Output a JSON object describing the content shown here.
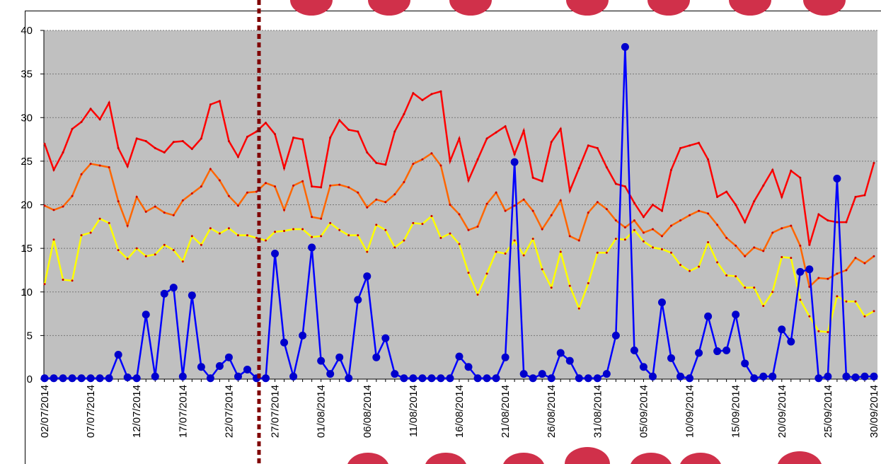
{
  "chart_data": {
    "type": "line",
    "categories": [
      "02/07/2014",
      null,
      null,
      null,
      null,
      "07/07/2014",
      null,
      null,
      null,
      null,
      "12/07/2014",
      null,
      null,
      null,
      null,
      "17/07/2014",
      null,
      null,
      null,
      null,
      "22/07/2014",
      null,
      null,
      null,
      null,
      "27/07/2014",
      null,
      null,
      null,
      null,
      "01/08/2014",
      null,
      null,
      null,
      null,
      "06/08/2014",
      null,
      null,
      null,
      null,
      "11/08/2014",
      null,
      null,
      null,
      null,
      "16/08/2014",
      null,
      null,
      null,
      null,
      "21/08/2014",
      null,
      null,
      null,
      null,
      "26/08/2014",
      null,
      null,
      null,
      null,
      "31/08/2014",
      null,
      null,
      null,
      null,
      "05/09/2014",
      null,
      null,
      null,
      null,
      "10/09/2014",
      null,
      null,
      null,
      null,
      "15/09/2014",
      null,
      null,
      null,
      null,
      "20/09/2014",
      null,
      null,
      null,
      null,
      "25/09/2014",
      null,
      null,
      null,
      null,
      "30/09/2014"
    ],
    "series": [
      {
        "color": "#ff0000",
        "values": [
          27,
          24,
          26,
          28.7,
          29.5,
          31,
          29.8,
          31.7,
          26.5,
          24.4,
          27.6,
          27.3,
          26.5,
          26,
          27.2,
          27.3,
          26.4,
          27.6,
          31.5,
          31.9,
          27.3,
          25.5,
          27.8,
          28.4,
          29.4,
          28.1,
          24.2,
          27.7,
          27.5,
          22.1,
          22,
          27.7,
          29.7,
          28.6,
          28.4,
          26,
          24.8,
          24.6,
          28.4,
          30.4,
          32.8,
          32,
          32.7,
          33,
          25,
          27.6,
          22.8,
          25.2,
          27.6,
          28.3,
          29,
          25.8,
          28.5,
          23.1,
          22.7,
          27.2,
          28.7,
          21.6,
          24.2,
          26.8,
          26.5,
          24.3,
          22.4,
          22.1,
          20.2,
          18.6,
          20,
          19.3,
          24,
          26.5,
          26.8,
          27.1,
          25.2,
          20.9,
          21.5,
          20,
          18,
          20.4,
          22.2,
          24,
          20.9,
          23.9,
          23.1,
          15.4,
          18.9,
          18.2,
          18,
          18,
          20.9,
          21.1,
          24.8
        ]
      },
      {
        "color": "#ff6600",
        "values": [
          19.9,
          19.4,
          19.8,
          21.0,
          23.5,
          24.7,
          24.5,
          24.3,
          20.4,
          17.6,
          20.9,
          19.2,
          19.8,
          19.1,
          18.8,
          20.5,
          21.3,
          22.1,
          24.1,
          22.8,
          21.0,
          19.9,
          21.4,
          21.5,
          22.5,
          22.1,
          19.4,
          22.2,
          22.7,
          18.6,
          18.4,
          22.2,
          22.3,
          22.0,
          21.4,
          19.7,
          20.6,
          20.3,
          21.2,
          22.6,
          24.7,
          25.2,
          25.9,
          24.5,
          20.0,
          18.9,
          17.1,
          17.5,
          20.1,
          21.4,
          19.3,
          19.9,
          20.6,
          19.3,
          17.2,
          18.8,
          20.5,
          16.4,
          15.9,
          19.1,
          20.3,
          19.5,
          18.2,
          17.4,
          18.2,
          16.8,
          17.2,
          16.4,
          17.6,
          18.2,
          18.8,
          19.3,
          19.0,
          17.7,
          16.2,
          15.3,
          14.1,
          15.1,
          14.7,
          16.8,
          17.3,
          17.6,
          15.3,
          10.6,
          11.6,
          11.5,
          12.1,
          12.5,
          13.9,
          13.3,
          14.1
        ]
      },
      {
        "color": "#ffff00",
        "values": [
          10.9,
          16,
          11.4,
          11.3,
          16.5,
          16.8,
          18.4,
          17.9,
          14.8,
          13.8,
          15,
          14.1,
          14.3,
          15.4,
          14.8,
          13.5,
          16.4,
          15.4,
          17.3,
          16.7,
          17.3,
          16.5,
          16.5,
          16.2,
          15.9,
          16.9,
          17,
          17.2,
          17.2,
          16.3,
          16.4,
          17.9,
          17.1,
          16.5,
          16.5,
          14.6,
          17.7,
          17.1,
          15.1,
          15.9,
          17.9,
          17.8,
          18.7,
          16.2,
          16.7,
          15.5,
          12.2,
          9.7,
          12.1,
          14.6,
          14.4,
          15.9,
          14.2,
          16.1,
          12.6,
          10.5,
          14.6,
          10.7,
          8.1,
          11,
          14.5,
          14.5,
          16.1,
          16,
          17.1,
          15.8,
          15.1,
          14.9,
          14.5,
          13.1,
          12.4,
          12.9,
          15.7,
          13.4,
          11.9,
          11.8,
          10.5,
          10.5,
          8.4,
          10,
          14,
          13.9,
          9.1,
          7.2,
          5.5,
          5.4,
          9.5,
          8.9,
          8.9,
          7.2,
          7.8
        ]
      },
      {
        "color": "#0000ff",
        "marker_color": "#0000cc",
        "values": [
          0.1,
          0.1,
          0.1,
          0.1,
          0.1,
          0.1,
          0.1,
          0.1,
          2.8,
          0.2,
          0.1,
          7.4,
          0.3,
          9.8,
          10.5,
          0.3,
          9.6,
          1.4,
          0.1,
          1.5,
          2.5,
          0.3,
          1.1,
          0.1,
          0.1,
          14.4,
          4.2,
          0.3,
          5,
          15.1,
          2.1,
          0.6,
          2.5,
          0.1,
          9.1,
          11.8,
          2.5,
          4.7,
          0.6,
          0.1,
          0.1,
          0.1,
          0.1,
          0.1,
          0.1,
          2.6,
          1.4,
          0.1,
          0.1,
          0.1,
          2.5,
          24.9,
          0.6,
          0.1,
          0.6,
          0.1,
          3,
          2.1,
          0.1,
          0.1,
          0.1,
          0.6,
          5,
          38.1,
          3.3,
          1.4,
          0.3,
          8.8,
          2.4,
          0.3,
          0.1,
          3,
          7.2,
          3.2,
          3.3,
          7.4,
          1.8,
          0.1,
          0.3,
          0.3,
          5.7,
          4.3,
          12.3,
          12.6,
          0.1,
          0.3,
          23,
          0.3,
          0.2,
          0.3,
          0.3
        ]
      }
    ],
    "ylim": [
      0,
      40
    ],
    "yticks": [
      0,
      5,
      10,
      15,
      20,
      25,
      30,
      35,
      40
    ],
    "grid": true
  }
}
